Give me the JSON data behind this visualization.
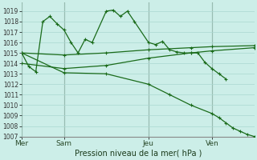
{
  "background_color": "#cceee8",
  "grid_color": "#aad8d0",
  "line_color": "#1a6b1a",
  "xlabel": "Pression niveau de la mer( hPa )",
  "ylim": [
    1007,
    1019.8
  ],
  "yticks": [
    1007,
    1008,
    1009,
    1010,
    1011,
    1012,
    1013,
    1014,
    1015,
    1016,
    1017,
    1018,
    1019
  ],
  "xtick_labels": [
    "Mer",
    "Sam",
    "Jeu",
    "Ven"
  ],
  "xtick_positions": [
    0,
    6,
    18,
    27
  ],
  "vline_positions": [
    0,
    6,
    18,
    27
  ],
  "xlim": [
    0,
    33
  ],
  "line1_wavy": {
    "x": [
      0,
      1,
      2,
      3,
      4,
      5,
      6,
      7,
      8,
      9,
      10,
      12,
      13,
      14,
      15,
      16,
      18,
      19,
      20,
      21,
      22,
      23,
      24,
      25,
      26,
      27,
      28,
      29
    ],
    "y": [
      1015.0,
      1013.7,
      1013.2,
      1018.0,
      1018.5,
      1017.8,
      1017.2,
      1016.0,
      1015.0,
      1016.3,
      1016.0,
      1019.0,
      1019.1,
      1018.5,
      1019.0,
      1018.0,
      1016.0,
      1015.8,
      1016.1,
      1015.3,
      1015.1,
      1015.0,
      1015.0,
      1015.0,
      1014.1,
      1013.5,
      1013.0,
      1012.5
    ]
  },
  "line2_straight_up": {
    "x": [
      0,
      6,
      12,
      18,
      24,
      27,
      33
    ],
    "y": [
      1015.0,
      1014.8,
      1015.0,
      1015.3,
      1015.5,
      1015.6,
      1015.7
    ]
  },
  "line3_straight_cross": {
    "x": [
      0,
      6,
      12,
      18,
      24,
      27,
      33
    ],
    "y": [
      1014.0,
      1013.5,
      1013.8,
      1014.5,
      1015.0,
      1015.2,
      1015.5
    ]
  },
  "line4_descend": {
    "x": [
      0,
      6,
      12,
      18,
      21,
      24,
      27,
      28,
      29,
      30,
      31,
      32,
      33
    ],
    "y": [
      1015.0,
      1013.1,
      1013.0,
      1012.0,
      1011.0,
      1010.0,
      1009.2,
      1008.8,
      1008.3,
      1007.8,
      1007.5,
      1007.2,
      1007.0
    ]
  }
}
